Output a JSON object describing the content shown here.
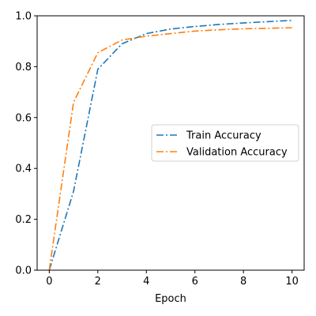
{
  "chart_data": {
    "type": "line",
    "title": "",
    "xlabel": "Epoch",
    "ylabel": "",
    "xlim": [
      -0.5,
      10.5
    ],
    "ylim": [
      0.0,
      1.0
    ],
    "x_ticks": [
      0,
      2,
      4,
      6,
      8,
      10
    ],
    "x_tick_labels": [
      "0",
      "2",
      "4",
      "6",
      "8",
      "10"
    ],
    "y_ticks": [
      0.0,
      0.2,
      0.4,
      0.6,
      0.8,
      1.0
    ],
    "y_tick_labels": [
      "0.0",
      "0.2",
      "0.4",
      "0.6",
      "0.8",
      "1.0"
    ],
    "grid": false,
    "legend_position": "center-right",
    "x": [
      0,
      1,
      2,
      3,
      4,
      5,
      6,
      7,
      8,
      9,
      10
    ],
    "series": [
      {
        "name": "Train Accuracy",
        "color": "#1f77b4",
        "line_style": "dashdot",
        "values": [
          0.0,
          0.31,
          0.79,
          0.89,
          0.93,
          0.948,
          0.958,
          0.966,
          0.972,
          0.977,
          0.982
        ]
      },
      {
        "name": "Validation Accuracy",
        "color": "#ff7f0e",
        "line_style": "dashdot",
        "values": [
          0.0,
          0.66,
          0.855,
          0.905,
          0.92,
          0.93,
          0.94,
          0.945,
          0.949,
          0.951,
          0.953
        ]
      }
    ]
  }
}
